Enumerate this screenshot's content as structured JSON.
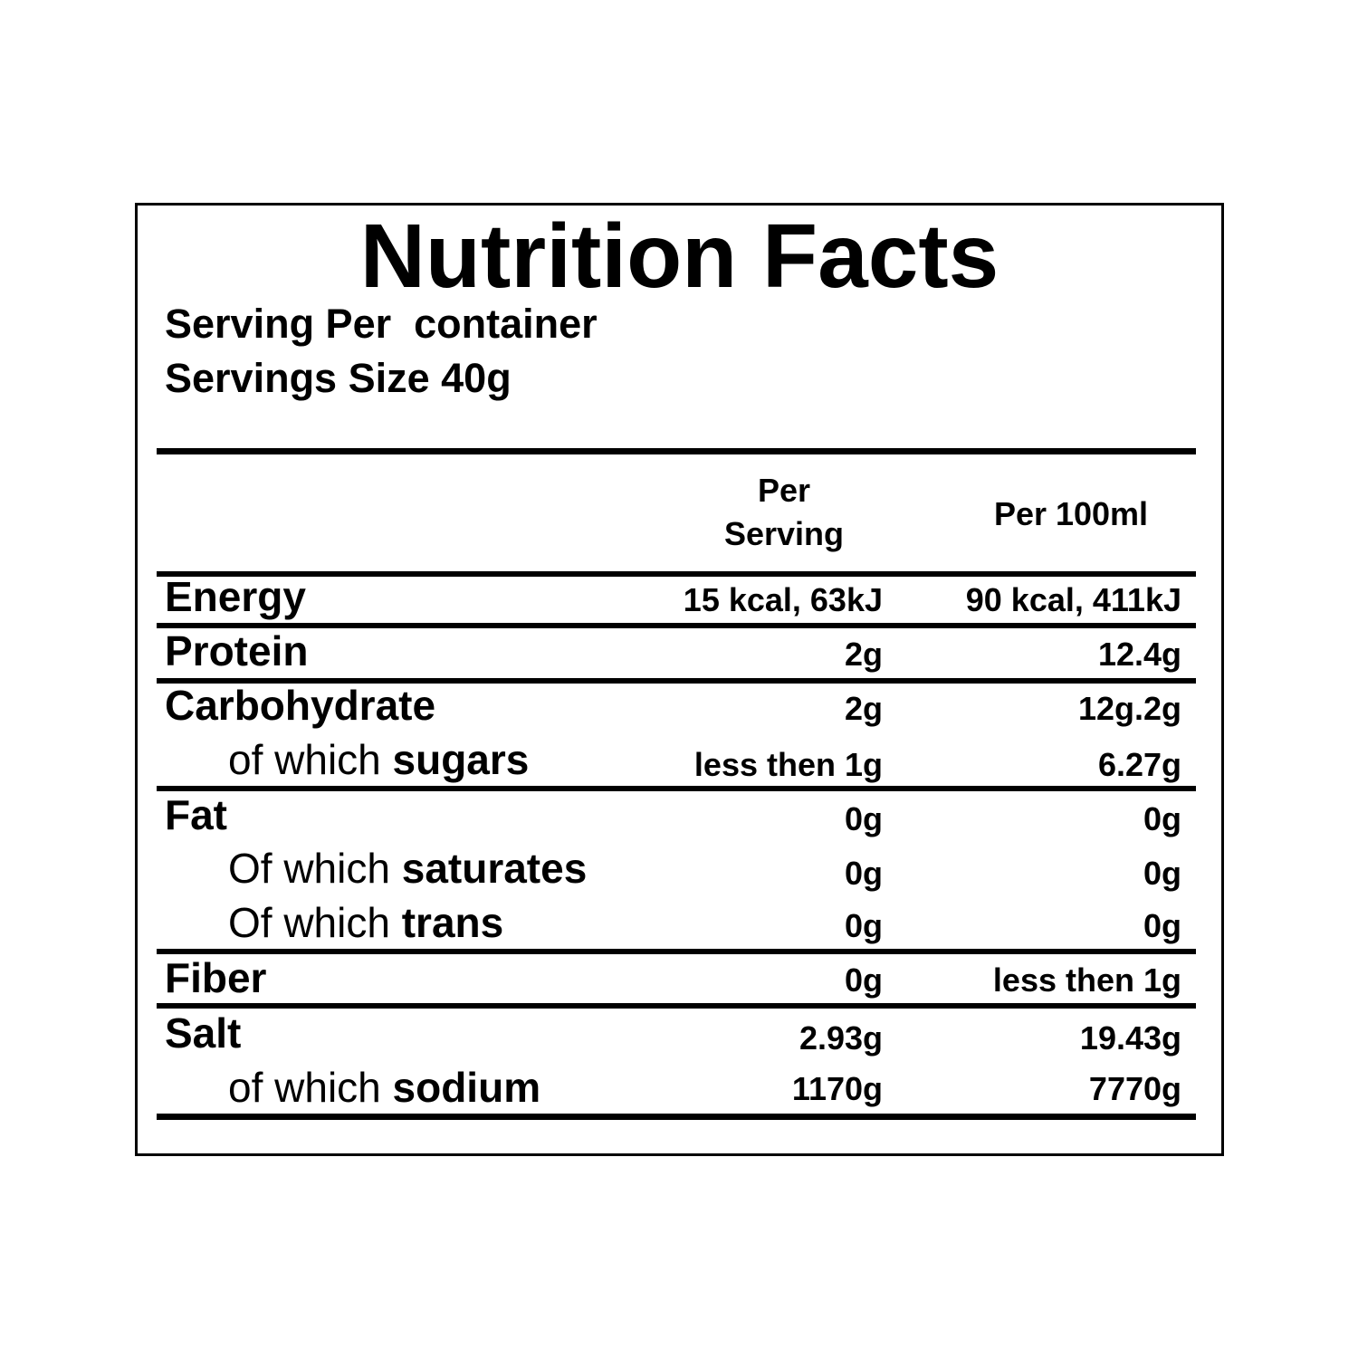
{
  "title": "Nutrition Facts",
  "serving_per_container": "Serving Per  container",
  "serving_size": "Servings Size 40g",
  "columns": {
    "per_serving_line1": "Per",
    "per_serving_line2": "Serving",
    "per_100": "Per 100ml"
  },
  "rows": [
    {
      "label": "Energy",
      "per_serving": "15 kcal, 63kJ",
      "per_100": "90 kcal, 411kJ"
    },
    {
      "label": "Protein",
      "per_serving": "2g",
      "per_100": "12.4g"
    },
    {
      "label": "Carbohydrate",
      "per_serving": "2g",
      "per_100": "12g.2g"
    },
    {
      "prefix": "of which ",
      "label": "sugars",
      "per_serving": "less then 1g",
      "per_100": "6.27g"
    },
    {
      "label": "Fat",
      "per_serving": "0g",
      "per_100": "0g"
    },
    {
      "prefix": "Of which ",
      "label": "saturates",
      "per_serving": "0g",
      "per_100": "0g"
    },
    {
      "prefix": "Of which ",
      "label": "trans",
      "per_serving": "0g",
      "per_100": "0g"
    },
    {
      "label": "Fiber",
      "per_serving": "0g",
      "per_100": "less then 1g"
    },
    {
      "label": "Salt",
      "per_serving": "2.93g",
      "per_100": "19.43g"
    },
    {
      "prefix": "of which ",
      "label": "sodium",
      "per_serving": "1170g",
      "per_100": "7770g"
    }
  ]
}
